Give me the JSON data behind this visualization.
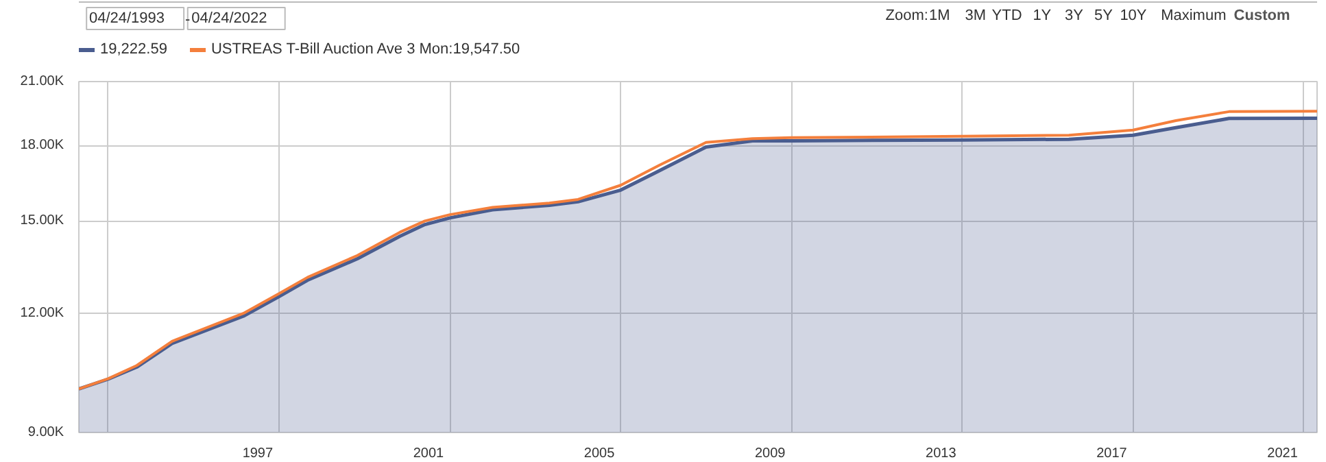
{
  "chart_data": {
    "type": "area",
    "x": [
      "1993-04-24",
      "1994-01-01",
      "1994-09-01",
      "1995-07-01",
      "1997-03-01",
      "1998-01-01",
      "1998-09-01",
      "1999-11-01",
      "2000-11-01",
      "2001-06-01",
      "2002-01-01",
      "2003-01-01",
      "2004-05-01",
      "2005-01-01",
      "2006-01-01",
      "2006-12-01",
      "2008-01-01",
      "2009-02-01",
      "2010-01-01",
      "2014-01-01",
      "2016-07-01",
      "2018-01-01",
      "2019-01-01",
      "2020-04-01",
      "2022-04-24"
    ],
    "series": [
      {
        "color": "#4a5d8f",
        "values": [
          10000,
          10240,
          10540,
          11160,
          11920,
          12500,
          13000,
          13690,
          14460,
          14870,
          15110,
          15410,
          15580,
          15710,
          16160,
          16940,
          17930,
          18200,
          18200,
          18240,
          18270,
          18450,
          18790,
          19210,
          19222.59
        ]
      },
      {
        "type": "line",
        "name": "USTREAS T-Bill Auction Ave 3 Mon:19,547.50",
        "color": "#f47f3c",
        "values": [
          10000,
          10250,
          10580,
          11220,
          12000,
          12590,
          13090,
          13800,
          14600,
          15000,
          15230,
          15500,
          15660,
          15800,
          16350,
          17170,
          18130,
          18300,
          18340,
          18400,
          18450,
          18680,
          19110,
          19530,
          19547.5
        ]
      }
    ],
    "log": true,
    "xlim": [
      "1993-04-24",
      "2022-04-24"
    ],
    "xticks": [
      {
        "value": "1994-01-01",
        "label": null
      },
      {
        "value": "1997-07-02",
        "label": "1997"
      },
      {
        "value": "1998-01-01",
        "label": null
      },
      {
        "value": "2001-07-02",
        "label": "2001"
      },
      {
        "value": "2002-01-01",
        "label": null
      },
      {
        "value": "2005-07-02",
        "label": "2005"
      },
      {
        "value": "2006-01-01",
        "label": null
      },
      {
        "value": "2009-07-02",
        "label": "2009"
      },
      {
        "value": "2010-01-01",
        "label": null
      },
      {
        "value": "2013-07-02",
        "label": "2013"
      },
      {
        "value": "2014-01-01",
        "label": null
      },
      {
        "value": "2017-07-02",
        "label": "2017"
      },
      {
        "value": "2018-01-01",
        "label": null
      },
      {
        "value": "2021-07-02",
        "label": "2021"
      },
      {
        "value": "2022-01-01",
        "label": null
      }
    ],
    "ylim": [
      9000,
      21000
    ],
    "yticks": [
      {
        "value": 9000,
        "label": "9.00K"
      },
      {
        "value": 12000,
        "label": "12.00K"
      },
      {
        "value": 15000,
        "label": "15.00K"
      },
      {
        "value": 18000,
        "label": "18.00K"
      },
      {
        "value": 21000,
        "label": "21.00K"
      }
    ],
    "grid": true,
    "legend": "top left",
    "annotations": [
      "19,222.59",
      "04/24/1993",
      "-",
      "04/24/2022",
      "Zoom:",
      "1M",
      "3M",
      "YTD",
      "1Y",
      "3Y",
      "5Y",
      "10Y",
      "Maximum",
      "Custom"
    ]
  }
}
